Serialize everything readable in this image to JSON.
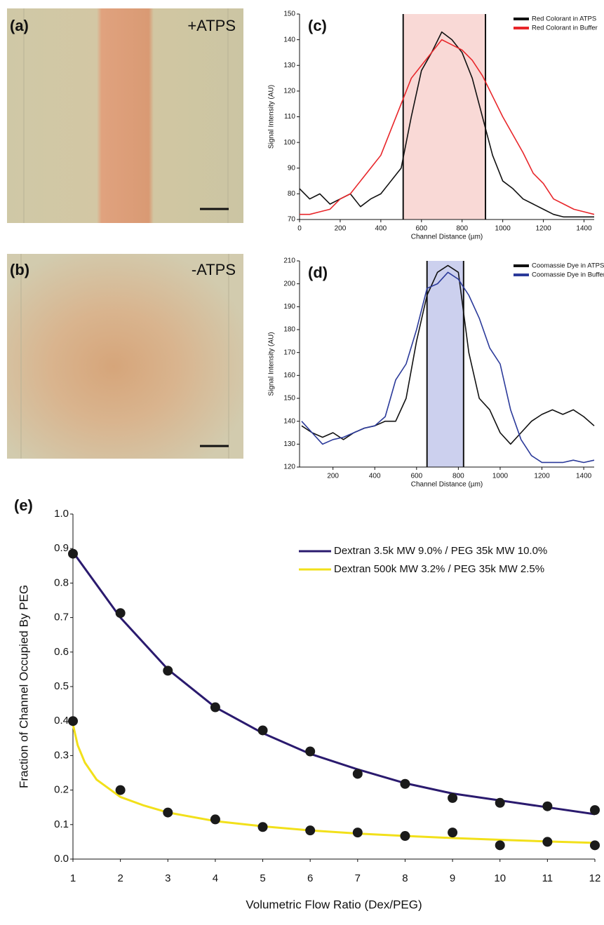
{
  "images": [
    {
      "label": "(a)",
      "caption": "+ATPS"
    },
    {
      "label": "(b)",
      "caption": "-ATPS"
    }
  ],
  "chart_data": [
    {
      "type": "line",
      "label": "(c)",
      "xlabel": "Channel Distance (µm)",
      "ylabel": "Signal Intensity (AU)",
      "xlim": [
        0,
        1450
      ],
      "xticks": [
        0,
        200,
        400,
        600,
        800,
        1000,
        1200,
        1400
      ],
      "ylim": [
        70,
        150
      ],
      "yticks": [
        70,
        80,
        90,
        100,
        110,
        120,
        130,
        140,
        150
      ],
      "shaded_region": [
        510,
        915
      ],
      "shade_color": "#f9d9d6",
      "x": [
        0,
        50,
        100,
        150,
        200,
        250,
        300,
        350,
        400,
        450,
        500,
        550,
        600,
        650,
        700,
        750,
        800,
        850,
        900,
        950,
        1000,
        1050,
        1100,
        1150,
        1200,
        1250,
        1300,
        1350,
        1400,
        1450
      ],
      "series": [
        {
          "name": "Red Colorant in ATPS",
          "color": "#111111",
          "values": [
            82,
            78,
            80,
            76,
            78,
            80,
            75,
            78,
            80,
            85,
            90,
            110,
            128,
            135,
            143,
            140,
            135,
            125,
            110,
            95,
            85,
            82,
            78,
            76,
            74,
            72,
            71,
            71,
            71,
            71
          ]
        },
        {
          "name": "Red Colorant in Buffer",
          "color": "#e8262a",
          "values": [
            72,
            72,
            73,
            74,
            78,
            80,
            85,
            90,
            95,
            105,
            115,
            125,
            130,
            135,
            140,
            138,
            136,
            132,
            126,
            118,
            110,
            103,
            96,
            88,
            84,
            78,
            76,
            74,
            73,
            72
          ]
        }
      ]
    },
    {
      "type": "line",
      "label": "(d)",
      "xlabel": "Channel Distance (µm)",
      "ylabel": "Signal Intensity (AU)",
      "xlim": [
        40,
        1450
      ],
      "xticks": [
        200,
        400,
        600,
        800,
        1000,
        1200,
        1400
      ],
      "ylim": [
        120,
        210
      ],
      "yticks": [
        120,
        130,
        140,
        150,
        160,
        170,
        180,
        190,
        200,
        210
      ],
      "shaded_region": [
        650,
        825
      ],
      "shade_color": "#ccd0ee",
      "x": [
        50,
        100,
        150,
        200,
        250,
        300,
        350,
        400,
        450,
        500,
        550,
        600,
        650,
        700,
        750,
        800,
        850,
        900,
        950,
        1000,
        1050,
        1100,
        1150,
        1200,
        1250,
        1300,
        1350,
        1400,
        1450
      ],
      "series": [
        {
          "name": "Coomassie Dye in ATPS",
          "color": "#111111",
          "values": [
            138,
            135,
            133,
            135,
            132,
            135,
            137,
            138,
            140,
            140,
            150,
            175,
            195,
            205,
            208,
            205,
            170,
            150,
            145,
            135,
            130,
            135,
            140,
            143,
            145,
            143,
            145,
            142,
            138
          ]
        },
        {
          "name": "Coomassie Dye in Buffer",
          "color": "#2b3a9a",
          "values": [
            140,
            135,
            130,
            132,
            133,
            135,
            137,
            138,
            142,
            158,
            165,
            180,
            198,
            200,
            205,
            202,
            195,
            185,
            172,
            165,
            145,
            132,
            125,
            122,
            122,
            122,
            123,
            122,
            123
          ]
        }
      ]
    },
    {
      "type": "scatter",
      "label": "(e)",
      "xlabel": "Volumetric Flow Ratio (Dex/PEG)",
      "ylabel": "Fraction of Channel Occupied By PEG",
      "xlim": [
        1,
        12
      ],
      "xticks": [
        1,
        2,
        3,
        4,
        5,
        6,
        7,
        8,
        9,
        10,
        11,
        12
      ],
      "ylim": [
        0,
        1
      ],
      "yticks": [
        {
          "value": 0,
          "label": "0.0"
        },
        0.1,
        0.2,
        0.3,
        0.4,
        0.5,
        0.6,
        0.7,
        0.8,
        0.9,
        {
          "value": 1,
          "label": "1.0"
        }
      ],
      "point_color": "#1a1a1a",
      "x": [
        1,
        2,
        3,
        4,
        5,
        6,
        7,
        8,
        9,
        10,
        11,
        12
      ],
      "series": [
        {
          "name": "Dextran 3.5k MW 9.0% / PEG 35k MW 10.0%",
          "color": "#2a1a6e",
          "values": [
            0.885,
            0.713,
            0.546,
            0.44,
            0.373,
            0.312,
            0.247,
            0.218,
            0.177,
            0.163,
            0.153,
            0.142
          ],
          "fit_x": [
            1,
            2,
            3,
            4,
            5,
            6,
            7,
            8,
            9,
            10,
            11,
            12
          ],
          "fit_values": [
            0.89,
            0.7,
            0.55,
            0.44,
            0.365,
            0.305,
            0.26,
            0.22,
            0.19,
            0.17,
            0.15,
            0.13
          ]
        },
        {
          "name": "Dextran 500k MW 3.2% / PEG 35k MW 2.5%",
          "color": "#f2e01a",
          "values": [
            0.4,
            0.2,
            0.135,
            0.115,
            0.093,
            0.083,
            0.077,
            0.067,
            0.077,
            0.04,
            0.05,
            0.04
          ],
          "fit_x": [
            1,
            1.1,
            1.25,
            1.5,
            2,
            2.5,
            3,
            4,
            5,
            6,
            7,
            8,
            9,
            10,
            11,
            12
          ],
          "fit_values": [
            0.39,
            0.33,
            0.28,
            0.23,
            0.18,
            0.155,
            0.135,
            0.11,
            0.095,
            0.083,
            0.074,
            0.067,
            0.061,
            0.056,
            0.051,
            0.047
          ]
        }
      ]
    }
  ]
}
